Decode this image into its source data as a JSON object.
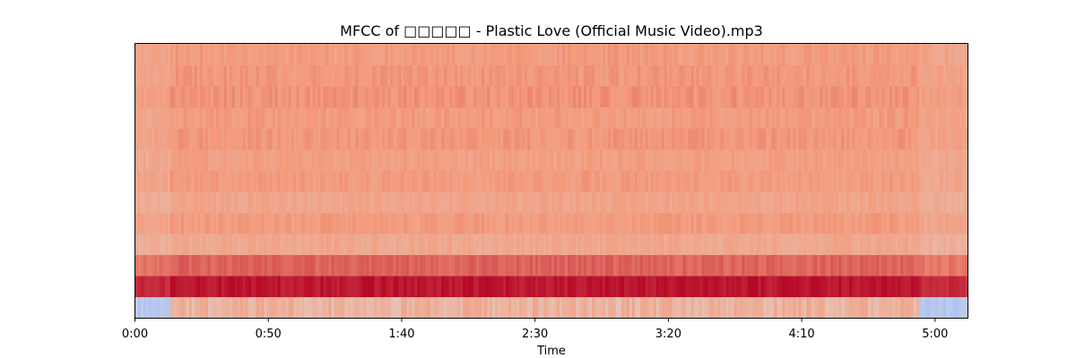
{
  "chart_data": {
    "type": "heatmap",
    "title": "MFCC of □□□□□ -  Plastic Love (Official Music Video).mp3",
    "xlabel": "Time",
    "ylabel": "",
    "x_range": [
      "0:00",
      "5:12"
    ],
    "x_ticks": [
      {
        "label": "0:00",
        "seconds": 0
      },
      {
        "label": "0:50",
        "seconds": 50
      },
      {
        "label": "1:40",
        "seconds": 100
      },
      {
        "label": "2:30",
        "seconds": 150
      },
      {
        "label": "3:20",
        "seconds": 200
      },
      {
        "label": "4:10",
        "seconds": 250
      },
      {
        "label": "5:00",
        "seconds": 300
      }
    ],
    "y_ticks": [],
    "n_coefficients": 13,
    "colormap": "coolwarm",
    "colormap_stops": [
      "#3b4cc0",
      "#8db0fe",
      "#dddddd",
      "#f49a7b",
      "#b40426"
    ],
    "band_base_values": [
      0.13,
      0.97,
      0.84,
      0.7,
      0.74,
      0.71,
      0.74,
      0.73,
      0.75,
      0.74,
      0.76,
      0.75,
      0.74
    ],
    "grid": false,
    "legend": "none"
  }
}
